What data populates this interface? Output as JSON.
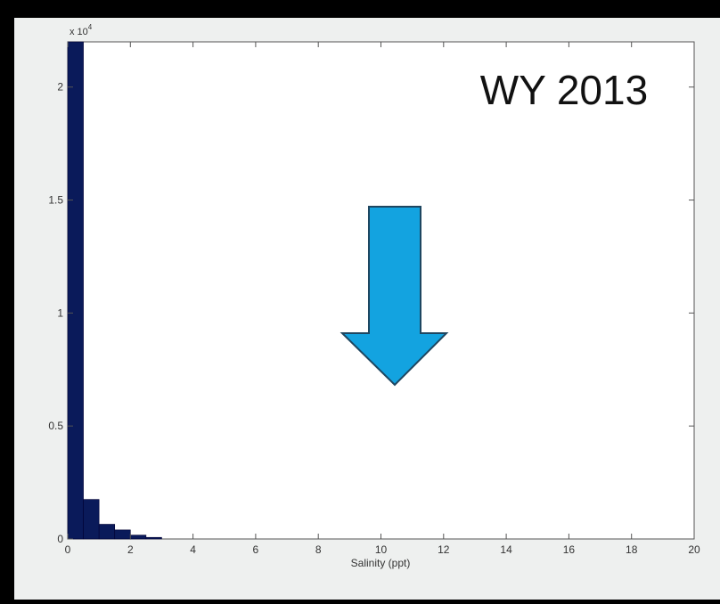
{
  "figure": {
    "exponent_label": "x 10",
    "exponent_power": "4",
    "annotation": "WY 2013"
  },
  "chart_data": {
    "type": "bar",
    "subtype": "histogram",
    "xlabel": "Salinity (ppt)",
    "ylabel": "",
    "xlim": [
      0,
      20
    ],
    "ylim": [
      0,
      22000
    ],
    "y_scale_note": "x 10^4",
    "x_ticks": [
      "0",
      "2",
      "4",
      "6",
      "8",
      "10",
      "12",
      "14",
      "16",
      "18",
      "20"
    ],
    "y_ticks": [
      "0",
      "0.5",
      "1",
      "1.5",
      "2"
    ],
    "y_tick_values": [
      0,
      5000,
      10000,
      15000,
      20000
    ],
    "bin_width": 0.5,
    "bins": [
      0,
      0.5,
      1,
      1.5,
      2,
      2.5
    ],
    "values": [
      22000,
      1750,
      650,
      400,
      170,
      70
    ],
    "bar_color": "#0a1a5a",
    "grid": false,
    "arrow_color": "#13a3e0"
  }
}
